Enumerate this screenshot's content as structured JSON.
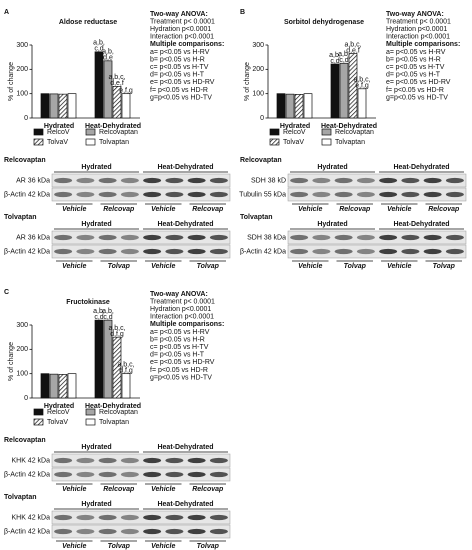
{
  "panel_labels": [
    "A",
    "B",
    "C"
  ],
  "chart_data": [
    {
      "type": "bar",
      "title": "Aldose reductase",
      "y_label": "% of change",
      "categories": [
        "Hydrated",
        "Heat-Dehydrated"
      ],
      "ylim": [
        0,
        300
      ],
      "yticks": [
        0,
        100,
        200,
        300
      ],
      "series": [
        {
          "name": "RelcoV",
          "color": "#111111",
          "values": [
            100,
            272
          ],
          "labels": [
            null,
            [
              "a,b,",
              "c,d"
            ]
          ]
        },
        {
          "name": "Relcovaptan",
          "color": "#a6a6a6",
          "values": [
            99,
            235
          ],
          "labels": [
            null,
            [
              "a,b,",
              "d,e"
            ]
          ]
        },
        {
          "name": "TolvaV",
          "color": "#ffffff",
          "hatch": true,
          "values": [
            98,
            130
          ],
          "labels": [
            null,
            [
              "a,b,c,",
              "d,e,f"
            ]
          ]
        },
        {
          "name": "Tolvaptan",
          "color": "#ffffff",
          "values": [
            100,
            100
          ],
          "labels": [
            null,
            [
              "e,f,g"
            ]
          ]
        }
      ],
      "stats": [
        "Two-way  ANOVA:",
        "Treatment p< 0.0001",
        "Hydration p<0.0001",
        "Interaction p<0.0001",
        "Multiple comparisons:",
        "a= p<0.05 vs H-RV",
        "b= p<0.05 vs H-R",
        "c= p<0.05 vs H-TV",
        "d= p<0.05 vs H-T",
        "e= p<0.05 vs HD-RV",
        "f= p<0.05 vs HD-R",
        "g=p<0.05 vs HD-TV"
      ]
    },
    {
      "type": "bar",
      "title": "Sorbitol dehydrogenase",
      "y_label": "% of change",
      "categories": [
        "Hydrated",
        "Heat-Dehydrated"
      ],
      "ylim": [
        0,
        300
      ],
      "yticks": [
        0,
        100,
        200,
        300
      ],
      "series": [
        {
          "name": "RelcoV",
          "color": "#111111",
          "values": [
            100,
            222
          ],
          "labels": [
            null,
            [
              "a,b,",
              "c,d"
            ]
          ]
        },
        {
          "name": "Relcovaptan",
          "color": "#a6a6a6",
          "values": [
            98,
            225
          ],
          "labels": [
            null,
            [
              "a,b,",
              "c,d"
            ]
          ]
        },
        {
          "name": "TolvaV",
          "color": "#ffffff",
          "hatch": true,
          "values": [
            97,
            265
          ],
          "labels": [
            null,
            [
              "a,b,c,",
              "d,e,f"
            ]
          ]
        },
        {
          "name": "Tolvaptan",
          "color": "#ffffff",
          "values": [
            100,
            120
          ],
          "labels": [
            null,
            [
              "a,b,c,",
              "e,f,g"
            ]
          ]
        }
      ],
      "stats": [
        "Two-way  ANOVA:",
        "Treatment p< 0.0001",
        "Hydration p<0.0001",
        "Interaction p<0.0001",
        "Multiple comparisons:",
        "a= p<0.05 vs H-RV",
        "b= p<0.05 vs H-R",
        "c= p<0.05 vs H-TV",
        "d= p<0.05 vs H-T",
        "e= p<0.05 vs HD-RV",
        "f= p<0.05 vs HD-R",
        "g=p<0.05 vs HD-TV"
      ]
    },
    {
      "type": "bar",
      "title": "Fructokinase",
      "y_label": "% of change",
      "categories": [
        "Hydrated",
        "Heat-Dehydrated"
      ],
      "ylim": [
        0,
        300
      ],
      "yticks": [
        0,
        100,
        200,
        300
      ],
      "series": [
        {
          "name": "RelcoV",
          "color": "#111111",
          "values": [
            100,
            320
          ],
          "labels": [
            null,
            [
              "a,b,",
              "c,d"
            ]
          ]
        },
        {
          "name": "Relcovaptan",
          "color": "#a6a6a6",
          "values": [
            98,
            320
          ],
          "labels": [
            null,
            [
              "a,b,",
              "c,d"
            ]
          ]
        },
        {
          "name": "TolvaV",
          "color": "#ffffff",
          "hatch": true,
          "values": [
            97,
            250
          ],
          "labels": [
            null,
            [
              "a,b,c,",
              "d,f,g"
            ]
          ]
        },
        {
          "name": "Tolvaptan",
          "color": "#ffffff",
          "values": [
            100,
            100
          ],
          "labels": [
            null,
            [
              "a,b,c,",
              "d,f,g"
            ]
          ]
        }
      ],
      "stats": [
        "Two-way  ANOVA:",
        "Treatment p< 0.0001",
        "Hydration p<0.0001",
        "Interaction p<0.0001",
        "Multiple comparisons:",
        "a= p<0.05 vs H-RV",
        "b= p<0.05 vs H-R",
        "c= p<0.05 vs H-TV",
        "d= p<0.05 vs H-T",
        "e= p<0.05 vs HD-RV",
        "f= p<0.05 vs HD-R",
        "g=p<0.05 vs HD-TV"
      ]
    }
  ],
  "blots": [
    [
      {
        "title": "Relcovaptan",
        "groups": [
          "Hydrated",
          "Heat-Dehydrated"
        ],
        "bands": [
          "AR 36 kDa",
          "β-Actin 42 kDa"
        ],
        "lanes": [
          "Vehicle",
          "Relcovap",
          "Vehicle",
          "Relcovap"
        ]
      },
      {
        "title": "Tolvaptan",
        "groups": [
          "Hydrated",
          "Heat-Dehydrated"
        ],
        "bands": [
          "AR 36 kDa",
          "β-Actin 42 kDa"
        ],
        "lanes": [
          "Vehicle",
          "Tolvap",
          "Vehicle",
          "Tolvap"
        ]
      }
    ],
    [
      {
        "title": "Relcovaptan",
        "groups": [
          "Hydrated",
          "Heat-Dehydrated"
        ],
        "bands": [
          "SDH 38 kD",
          "Tubulin 55 kDa"
        ],
        "lanes": [
          "Vehicle",
          "Relcovap",
          "Vehicle",
          "Relcovap"
        ]
      },
      {
        "title": "Tolvaptan",
        "groups": [
          "Hydrated",
          "Heat-Dehydrated"
        ],
        "bands": [
          "SDH 38 kDa",
          "β-Actin 42 kDa"
        ],
        "lanes": [
          "Vehicle",
          "Tolvap",
          "Vehicle",
          "Tolvap"
        ]
      }
    ],
    [
      {
        "title": "Relcovaptan",
        "groups": [
          "Hydrated",
          "Heat-Dehydrated"
        ],
        "bands": [
          "KHK 42 kDa",
          "β-Actin 42 kDa"
        ],
        "lanes": [
          "Vehicle",
          "Relcovap",
          "Vehicle",
          "Relcovap"
        ]
      },
      {
        "title": "Tolvaptan",
        "groups": [
          "Hydrated",
          "Heat-Dehydrated"
        ],
        "bands": [
          "KHK 42 kDa",
          "β-Actin 42 kDa"
        ],
        "lanes": [
          "Vehicle",
          "Tolvap",
          "Vehicle",
          "Tolvap"
        ]
      }
    ]
  ]
}
